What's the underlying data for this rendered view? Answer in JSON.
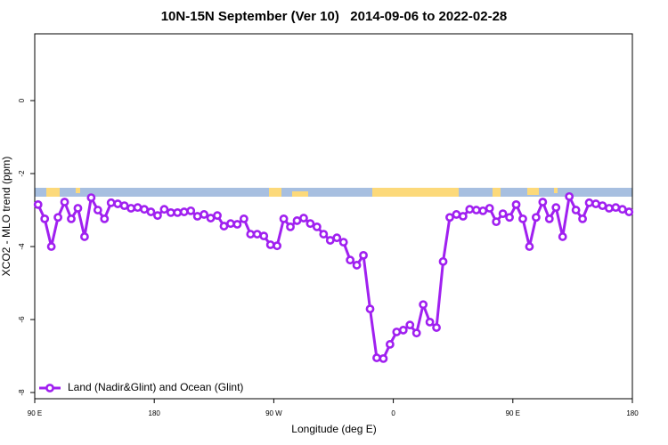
{
  "chart_data": {
    "type": "line",
    "title": "10N-15N September (Ver 10)   2014-09-06 to 2022-02-28",
    "x_label": "Longitude (deg E)",
    "y_label": "XCO2 - MLO trend (ppm)",
    "xlim": [
      90,
      540
    ],
    "ylim": [
      -8.17,
      1.83
    ],
    "xticks": [
      {
        "value": 90,
        "label": "90 E"
      },
      180,
      {
        "value": 270,
        "label": "90 W"
      },
      {
        "value": 360,
        "label": "0"
      },
      {
        "value": 450,
        "label": "90 E"
      },
      {
        "value": 540,
        "label": "180"
      }
    ],
    "yticks": [
      0,
      -2,
      -4,
      -6,
      -8
    ],
    "legend": "bottom-left",
    "x": [
      92.5,
      97.5,
      102.5,
      107.5,
      112.5,
      117.5,
      122.5,
      127.5,
      132.5,
      137.5,
      142.5,
      147.5,
      152.5,
      157.5,
      162.5,
      167.5,
      172.5,
      177.5,
      182.5,
      187.5,
      192.5,
      197.5,
      202.5,
      207.5,
      212.5,
      217.5,
      222.5,
      227.5,
      232.5,
      237.5,
      242.5,
      247.5,
      252.5,
      257.5,
      262.5,
      267.5,
      272.5,
      277.5,
      282.5,
      287.5,
      292.5,
      297.5,
      302.5,
      307.5,
      312.5,
      317.5,
      322.5,
      327.5,
      332.5,
      337.5,
      342.5,
      347.5,
      352.5,
      357.5,
      362.5,
      367.5,
      372.5,
      377.5,
      382.5,
      387.5,
      392.5,
      397.5,
      402.5,
      407.5,
      412.5,
      417.5,
      422.5,
      427.5,
      432.5,
      437.5,
      442.5,
      447.5,
      452.5,
      457.5,
      462.5,
      467.5,
      472.5,
      477.5,
      482.5,
      487.5,
      492.5,
      497.5,
      502.5,
      507.5,
      512.5,
      517.5,
      522.5,
      527.5,
      532.5,
      537.5
    ],
    "series": [
      {
        "name": "Land (Nadir&Glint) and Ocean (Glint)",
        "color": "#a020f0",
        "values": [
          -2.85,
          -3.24,
          -4.0,
          -3.2,
          -2.78,
          -3.24,
          -2.95,
          -3.73,
          -2.66,
          -3.0,
          -3.24,
          -2.8,
          -2.83,
          -2.88,
          -2.95,
          -2.93,
          -2.98,
          -3.05,
          -3.15,
          -2.98,
          -3.07,
          -3.07,
          -3.05,
          -3.02,
          -3.17,
          -3.12,
          -3.22,
          -3.15,
          -3.44,
          -3.37,
          -3.39,
          -3.24,
          -3.66,
          -3.66,
          -3.71,
          -3.95,
          -3.98,
          -3.24,
          -3.46,
          -3.29,
          -3.22,
          -3.37,
          -3.46,
          -3.66,
          -3.83,
          -3.76,
          -3.88,
          -4.37,
          -4.51,
          -4.24,
          -5.71,
          -7.05,
          -7.07,
          -6.68,
          -6.34,
          -6.29,
          -6.15,
          -6.37,
          -5.59,
          -6.07,
          -6.22,
          -4.41,
          -3.2,
          -3.12,
          -3.17,
          -2.98,
          -3.0,
          -3.02,
          -2.95,
          -3.32,
          -3.1,
          -3.2,
          -2.85,
          -3.24,
          -4.0,
          -3.2,
          -2.78,
          -3.24,
          -2.93,
          -3.73,
          -2.63,
          -3.0,
          -3.24,
          -2.8,
          -2.83,
          -2.88,
          -2.95,
          -2.93,
          -2.98,
          -3.05
        ]
      }
    ]
  }
}
